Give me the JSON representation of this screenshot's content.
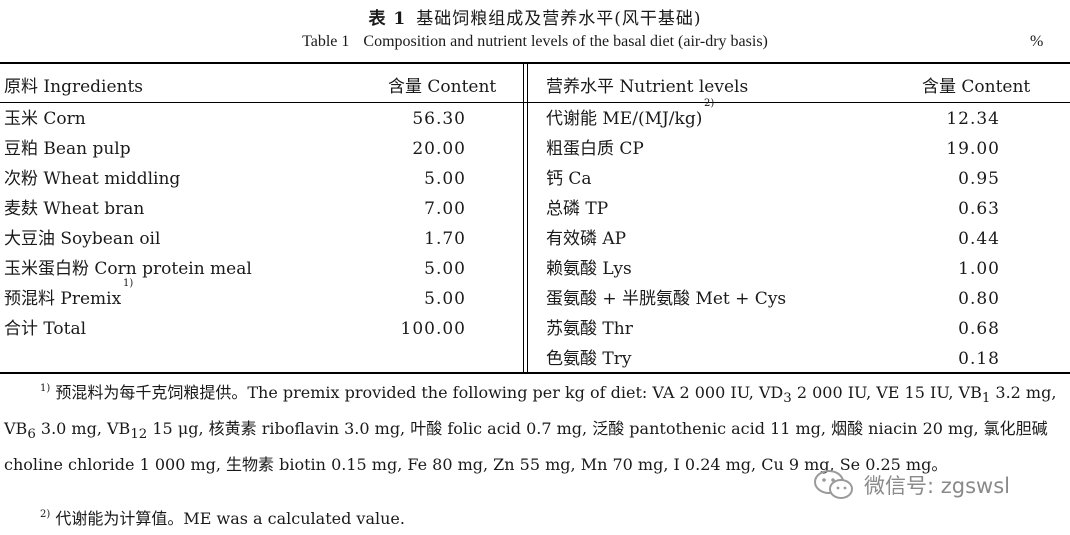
{
  "caption": {
    "cn_label": "表 1",
    "cn_title": "基础饲粮组成及营养水平(风干基础)",
    "en_label": "Table 1",
    "en_title": "Composition and nutrient levels of the basal diet (air-dry basis)",
    "unit": "%"
  },
  "headers": {
    "ingredients": "原料 Ingredients",
    "content_left": "含量 Content",
    "nutrients": "营养水平 Nutrient levels",
    "content_right": "含量 Content"
  },
  "ingredients": [
    {
      "name": "玉米 Corn",
      "value": "56.30"
    },
    {
      "name": "豆粕 Bean pulp",
      "value": "20.00"
    },
    {
      "name": "次粉 Wheat middling",
      "value": "5.00"
    },
    {
      "name": "麦麸 Wheat bran",
      "value": "7.00"
    },
    {
      "name": "大豆油 Soybean oil",
      "value": "1.70"
    },
    {
      "name": "玉米蛋白粉 Corn protein meal",
      "value": "5.00"
    },
    {
      "name": "预混料 Premix",
      "sup": "1)",
      "value": "5.00"
    },
    {
      "name": "合计 Total",
      "value": "100.00"
    }
  ],
  "nutrients": [
    {
      "name": "代谢能 ME/(MJ/kg)",
      "sup": "2)",
      "value": "12.34"
    },
    {
      "name": "粗蛋白质 CP",
      "value": "19.00"
    },
    {
      "name": "钙 Ca",
      "value": "0.95"
    },
    {
      "name": "总磷 TP",
      "value": "0.63"
    },
    {
      "name": "有效磷 AP",
      "value": "0.44"
    },
    {
      "name": "赖氨酸 Lys",
      "value": "1.00"
    },
    {
      "name": "蛋氨酸 + 半胱氨酸 Met + Cys",
      "value": "0.80"
    },
    {
      "name": "苏氨酸 Thr",
      "value": "0.68"
    },
    {
      "name": "色氨酸 Try",
      "value": "0.18"
    }
  ],
  "footnotes": {
    "fn1_mark": "1)",
    "fn1_a": "预混料为每千克饲粮提供。The premix provided the following per kg of diet: VA 2 000 IU, VD",
    "fn1_sub1": "3",
    "fn1_b": " 2 000 IU, VE 15 IU, VB",
    "fn1_sub2": "1",
    "fn1_c": " 3.2 mg, VB",
    "fn1_sub3": "6",
    "fn1_d": " 3.0 mg, VB",
    "fn1_sub4": "12",
    "fn1_e": " 15 μg, 核黄素 riboflavin 3.0 mg, 叶酸 folic acid 0.7 mg, 泛酸 pantothenic acid 11 mg, 烟酸 niacin 20 mg, 氯化胆碱 choline chloride 1 000 mg, 生物素 biotin 0.15 mg, Fe 80 mg, Zn 55 mg, Mn 70 mg, I 0.24 mg, Cu 9 mg, Se 0.25 mg。",
    "fn2_mark": "2)",
    "fn2": "代谢能为计算值。ME was a calculated value."
  },
  "watermark": {
    "text": "微信号: zgswsl",
    "icon": "wechat-icon"
  }
}
